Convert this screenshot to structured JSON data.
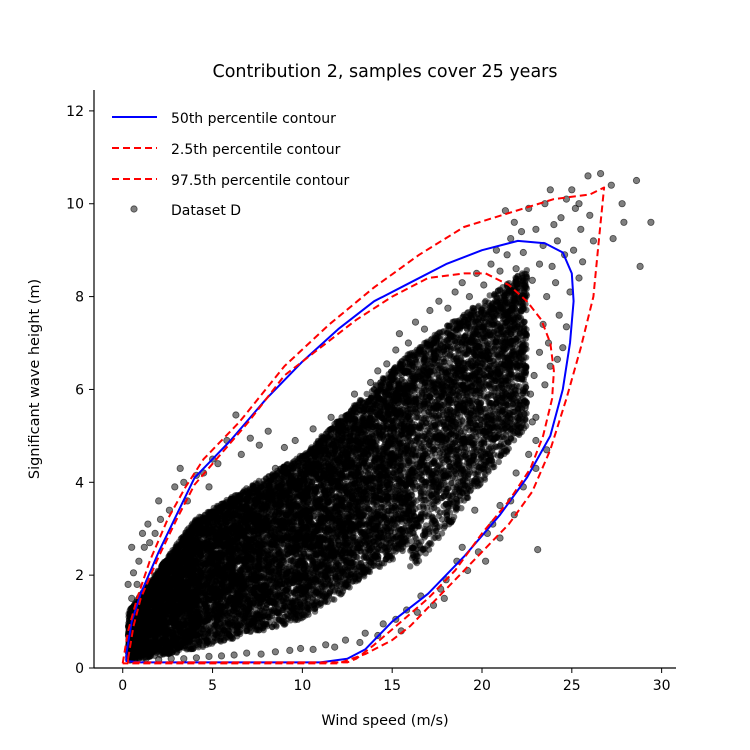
{
  "chart_data": {
    "type": "scatter",
    "title": "Contribution 2, samples cover 25 years",
    "xlabel": "Wind speed (m/s)",
    "ylabel": "Significant wave height (m)",
    "xlim": [
      -1.6,
      30.8
    ],
    "ylim": [
      0,
      12.45
    ],
    "x_ticks": [
      0,
      5,
      10,
      15,
      20,
      25,
      30
    ],
    "y_ticks": [
      0,
      2,
      4,
      6,
      8,
      10,
      12
    ],
    "grid": false,
    "legend_position": "top-left",
    "colors": {
      "median_contour": "#0000ff",
      "percentile_contour": "#ff0000",
      "scatter": "#000000"
    },
    "series": [
      {
        "name": "50th percentile contour",
        "kind": "line",
        "style": "solid",
        "color": "#0000ff",
        "points": [
          [
            0.2,
            0.3
          ],
          [
            0.5,
            1.0
          ],
          [
            1.0,
            1.6
          ],
          [
            2.0,
            2.5
          ],
          [
            3.0,
            3.3
          ],
          [
            4.0,
            4.1
          ],
          [
            5.0,
            4.5
          ],
          [
            6.0,
            4.9
          ],
          [
            8.0,
            5.8
          ],
          [
            10.0,
            6.6
          ],
          [
            12.0,
            7.3
          ],
          [
            14.0,
            7.9
          ],
          [
            16.0,
            8.3
          ],
          [
            18.0,
            8.7
          ],
          [
            20.0,
            9.0
          ],
          [
            22.0,
            9.2
          ],
          [
            23.5,
            9.15
          ],
          [
            24.5,
            8.95
          ],
          [
            25.0,
            8.5
          ],
          [
            25.1,
            7.9
          ],
          [
            24.9,
            7.0
          ],
          [
            24.5,
            6.0
          ],
          [
            23.8,
            5.0
          ],
          [
            22.5,
            4.1
          ],
          [
            21.0,
            3.3
          ],
          [
            19.0,
            2.4
          ],
          [
            17.0,
            1.6
          ],
          [
            15.0,
            1.0
          ],
          [
            13.5,
            0.4
          ],
          [
            12.5,
            0.2
          ],
          [
            11.0,
            0.12
          ],
          [
            6.0,
            0.12
          ],
          [
            1.0,
            0.12
          ],
          [
            0.2,
            0.15
          ],
          [
            0.2,
            0.3
          ]
        ]
      },
      {
        "name": "2.5th percentile contour",
        "kind": "line",
        "style": "dashed",
        "color": "#ff0000",
        "points": [
          [
            0.3,
            0.2
          ],
          [
            0.6,
            0.9
          ],
          [
            1.0,
            1.5
          ],
          [
            2.0,
            2.4
          ],
          [
            3.0,
            3.2
          ],
          [
            4.0,
            3.95
          ],
          [
            5.0,
            4.4
          ],
          [
            7.0,
            5.3
          ],
          [
            9.0,
            6.3
          ],
          [
            11.0,
            6.9
          ],
          [
            13.0,
            7.5
          ],
          [
            15.0,
            8.0
          ],
          [
            17.0,
            8.4
          ],
          [
            19.0,
            8.5
          ],
          [
            20.2,
            8.5
          ],
          [
            21.5,
            8.25
          ],
          [
            22.5,
            7.9
          ],
          [
            23.3,
            7.5
          ],
          [
            23.8,
            7.0
          ],
          [
            24.0,
            6.4
          ],
          [
            23.9,
            5.8
          ],
          [
            23.4,
            5.0
          ],
          [
            22.7,
            4.3
          ],
          [
            21.5,
            3.6
          ],
          [
            20.0,
            2.9
          ],
          [
            18.5,
            2.1
          ],
          [
            17.0,
            1.5
          ],
          [
            15.5,
            1.0
          ],
          [
            14.0,
            0.5
          ],
          [
            13.0,
            0.2
          ],
          [
            12.5,
            0.12
          ],
          [
            8.0,
            0.12
          ],
          [
            3.0,
            0.12
          ],
          [
            0.3,
            0.12
          ],
          [
            0.3,
            0.2
          ]
        ]
      },
      {
        "name": "97.5th percentile contour",
        "kind": "line",
        "style": "dashed",
        "color": "#ff0000",
        "points": [
          [
            0.0,
            0.1
          ],
          [
            0.3,
            0.8
          ],
          [
            0.8,
            1.5
          ],
          [
            1.5,
            2.3
          ],
          [
            2.5,
            3.2
          ],
          [
            3.5,
            3.9
          ],
          [
            4.5,
            4.5
          ],
          [
            6.5,
            5.3
          ],
          [
            9.0,
            6.5
          ],
          [
            11.5,
            7.4
          ],
          [
            14.0,
            8.2
          ],
          [
            16.5,
            8.9
          ],
          [
            19.0,
            9.5
          ],
          [
            21.5,
            9.8
          ],
          [
            24.0,
            10.1
          ],
          [
            26.0,
            10.2
          ],
          [
            26.8,
            10.35
          ],
          [
            26.5,
            9.2
          ],
          [
            26.2,
            8.0
          ],
          [
            25.5,
            6.9
          ],
          [
            24.7,
            5.8
          ],
          [
            23.8,
            4.7
          ],
          [
            22.8,
            3.8
          ],
          [
            21.5,
            3.1
          ],
          [
            20.0,
            2.5
          ],
          [
            18.5,
            1.9
          ],
          [
            17.0,
            1.3
          ],
          [
            16.0,
            0.9
          ],
          [
            15.0,
            0.6
          ],
          [
            13.5,
            0.3
          ],
          [
            12.0,
            0.1
          ],
          [
            8.0,
            0.1
          ],
          [
            0.5,
            0.1
          ],
          [
            0.0,
            0.1
          ]
        ]
      },
      {
        "name": "Dataset D",
        "kind": "scatter",
        "color": "#000000",
        "opacity": 0.5,
        "points": [
          [
            25.9,
            10.6
          ],
          [
            26.6,
            10.65
          ],
          [
            27.2,
            10.4
          ],
          [
            28.6,
            10.5
          ],
          [
            29.4,
            9.6
          ],
          [
            27.9,
            9.6
          ],
          [
            27.8,
            10.0
          ],
          [
            27.3,
            9.25
          ],
          [
            28.8,
            8.65
          ],
          [
            24.7,
            10.1
          ],
          [
            23.8,
            10.3
          ],
          [
            25.2,
            9.9
          ],
          [
            25.5,
            9.45
          ],
          [
            26.0,
            9.75
          ],
          [
            26.2,
            9.2
          ],
          [
            25.4,
            10.0
          ],
          [
            25.0,
            10.3
          ],
          [
            24.4,
            9.7
          ],
          [
            23.5,
            10.0
          ],
          [
            22.6,
            9.9
          ],
          [
            21.3,
            9.85
          ],
          [
            22.2,
            9.4
          ],
          [
            21.8,
            9.6
          ],
          [
            23.0,
            9.45
          ],
          [
            24.0,
            9.55
          ],
          [
            23.4,
            9.1
          ],
          [
            24.2,
            9.2
          ],
          [
            25.1,
            9.0
          ],
          [
            24.6,
            8.9
          ],
          [
            25.6,
            8.75
          ],
          [
            25.4,
            8.4
          ],
          [
            24.9,
            8.1
          ],
          [
            23.9,
            8.65
          ],
          [
            24.1,
            8.3
          ],
          [
            23.2,
            8.7
          ],
          [
            23.6,
            8.0
          ],
          [
            22.8,
            8.35
          ],
          [
            24.3,
            7.6
          ],
          [
            23.4,
            7.4
          ],
          [
            24.7,
            7.35
          ],
          [
            23.7,
            7.0
          ],
          [
            24.5,
            6.9
          ],
          [
            24.2,
            6.65
          ],
          [
            23.8,
            6.5
          ],
          [
            23.2,
            6.8
          ],
          [
            22.9,
            6.3
          ],
          [
            23.5,
            6.1
          ],
          [
            22.7,
            5.9
          ],
          [
            23.0,
            5.4
          ],
          [
            22.4,
            5.6
          ],
          [
            22.0,
            5.1
          ],
          [
            22.8,
            5.3
          ],
          [
            23.0,
            4.9
          ],
          [
            23.6,
            4.7
          ],
          [
            23.0,
            4.3
          ],
          [
            22.6,
            4.6
          ],
          [
            21.9,
            4.2
          ],
          [
            22.3,
            3.9
          ],
          [
            21.6,
            3.6
          ],
          [
            21.8,
            3.3
          ],
          [
            21.0,
            3.5
          ],
          [
            20.6,
            3.1
          ],
          [
            21.0,
            2.8
          ],
          [
            23.1,
            2.55
          ],
          [
            20.3,
            2.9
          ],
          [
            19.8,
            2.5
          ],
          [
            20.2,
            2.3
          ],
          [
            19.6,
            3.4
          ],
          [
            18.9,
            2.6
          ],
          [
            18.6,
            2.3
          ],
          [
            19.2,
            2.1
          ],
          [
            18.0,
            1.9
          ],
          [
            17.9,
            1.5
          ],
          [
            17.3,
            1.35
          ],
          [
            17.7,
            1.7
          ],
          [
            16.6,
            1.55
          ],
          [
            16.4,
            1.2
          ],
          [
            15.8,
            1.25
          ],
          [
            15.2,
            1.05
          ],
          [
            15.5,
            0.8
          ],
          [
            14.5,
            0.95
          ],
          [
            14.2,
            0.7
          ],
          [
            13.5,
            0.75
          ],
          [
            13.2,
            0.55
          ],
          [
            12.4,
            0.6
          ],
          [
            11.8,
            0.45
          ],
          [
            11.3,
            0.5
          ],
          [
            10.6,
            0.4
          ],
          [
            9.9,
            0.42
          ],
          [
            9.3,
            0.38
          ],
          [
            8.5,
            0.35
          ],
          [
            7.7,
            0.3
          ],
          [
            6.9,
            0.32
          ],
          [
            6.2,
            0.28
          ],
          [
            5.5,
            0.26
          ],
          [
            4.8,
            0.25
          ],
          [
            4.1,
            0.22
          ],
          [
            3.4,
            0.2
          ],
          [
            2.7,
            0.2
          ],
          [
            2.0,
            0.18
          ],
          [
            1.3,
            0.2
          ],
          [
            0.7,
            0.25
          ],
          [
            0.3,
            0.35
          ],
          [
            0.5,
            0.6
          ],
          [
            0.4,
            0.9
          ],
          [
            0.6,
            1.2
          ],
          [
            0.5,
            1.5
          ],
          [
            0.8,
            1.8
          ],
          [
            0.6,
            2.05
          ],
          [
            0.9,
            2.3
          ],
          [
            0.5,
            2.6
          ],
          [
            0.3,
            1.8
          ],
          [
            1.2,
            2.6
          ],
          [
            1.1,
            2.9
          ],
          [
            1.5,
            2.7
          ],
          [
            1.4,
            3.1
          ],
          [
            1.8,
            2.9
          ],
          [
            2.1,
            3.2
          ],
          [
            2.0,
            3.6
          ],
          [
            2.6,
            3.4
          ],
          [
            2.9,
            3.9
          ],
          [
            3.2,
            4.3
          ],
          [
            3.4,
            4.0
          ],
          [
            3.6,
            3.6
          ],
          [
            4.1,
            4.15
          ],
          [
            4.5,
            4.2
          ],
          [
            4.8,
            3.9
          ],
          [
            5.0,
            4.5
          ],
          [
            5.3,
            4.4
          ],
          [
            5.8,
            4.9
          ],
          [
            6.3,
            5.45
          ],
          [
            6.6,
            4.6
          ],
          [
            7.1,
            4.95
          ],
          [
            7.6,
            4.8
          ],
          [
            8.1,
            5.1
          ],
          [
            8.5,
            4.3
          ],
          [
            9.0,
            4.75
          ],
          [
            9.6,
            4.9
          ],
          [
            10.2,
            4.5
          ],
          [
            10.6,
            5.15
          ],
          [
            11.2,
            4.85
          ],
          [
            11.6,
            5.4
          ],
          [
            12.2,
            5.0
          ],
          [
            12.7,
            5.45
          ],
          [
            12.9,
            5.9
          ],
          [
            13.4,
            5.7
          ],
          [
            13.8,
            6.15
          ],
          [
            14.2,
            6.4
          ],
          [
            14.7,
            6.55
          ],
          [
            15.2,
            6.85
          ],
          [
            15.4,
            7.2
          ],
          [
            15.9,
            7.0
          ],
          [
            16.3,
            7.45
          ],
          [
            16.8,
            7.3
          ],
          [
            17.1,
            7.7
          ],
          [
            17.6,
            7.9
          ],
          [
            18.1,
            7.75
          ],
          [
            18.5,
            8.1
          ],
          [
            18.9,
            8.3
          ],
          [
            19.3,
            8.0
          ],
          [
            19.7,
            8.5
          ],
          [
            20.1,
            8.25
          ],
          [
            20.5,
            8.7
          ],
          [
            21.0,
            8.55
          ],
          [
            21.4,
            8.9
          ],
          [
            21.9,
            8.6
          ],
          [
            22.3,
            8.95
          ],
          [
            20.8,
            9.0
          ],
          [
            21.6,
            9.25
          ]
        ],
        "clouds": [
          {
            "x": [
              0.3,
              4.0
            ],
            "y_lo": 0.15,
            "y_hi_a": 1.2,
            "y_hi_b": 3.2,
            "n": 2600
          },
          {
            "x": [
              4.0,
              10.0
            ],
            "y_lo": 0.4,
            "y_hi_a": 3.2,
            "y_hi_b": 4.6,
            "n": 3600
          },
          {
            "x": [
              10.0,
              16.0
            ],
            "y_lo": 1.0,
            "y_hi_a": 4.6,
            "y_hi_b": 6.8,
            "n": 3600
          },
          {
            "x": [
              16.0,
              22.5
            ],
            "y_lo": 2.0,
            "y_hi_a": 6.8,
            "y_hi_b": 8.6,
            "n": 3000
          }
        ]
      }
    ]
  }
}
